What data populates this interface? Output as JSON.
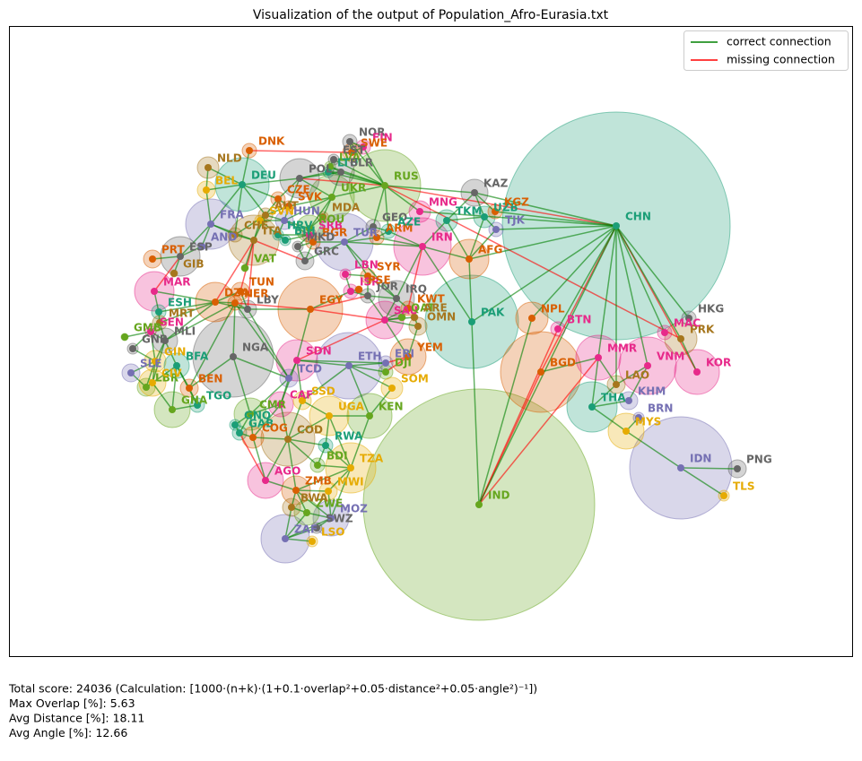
{
  "title": "Visualization of the output of Population_Afro-Eurasia.txt",
  "legend": [
    {
      "label": "correct connection",
      "color": "#008000"
    },
    {
      "label": "missing connection",
      "color": "#ff0000"
    }
  ],
  "nodes": [
    {
      "label": "CHN",
      "color": "#1b9e77"
    },
    {
      "label": "IND",
      "color": "#66a61e"
    },
    {
      "label": "PAK",
      "color": "#1b9e77"
    },
    {
      "label": "IDN",
      "color": "#7570b3"
    },
    {
      "label": "BGD",
      "color": "#d95f02"
    },
    {
      "label": "NGA",
      "color": "#666666"
    },
    {
      "label": "RUS",
      "color": "#66a61e"
    },
    {
      "label": "ETH",
      "color": "#7570b3"
    },
    {
      "label": "EGY",
      "color": "#d95f02"
    },
    {
      "label": "VNM",
      "color": "#e7298a"
    },
    {
      "label": "IRN",
      "color": "#e7298a"
    },
    {
      "label": "TUR",
      "color": "#7570b3"
    },
    {
      "label": "DEU",
      "color": "#1b9e77"
    },
    {
      "label": "COD",
      "color": "#a6761d"
    },
    {
      "label": "THA",
      "color": "#1b9e77"
    },
    {
      "label": "FRA",
      "color": "#7570b3"
    },
    {
      "label": "ITA",
      "color": "#a6761d"
    },
    {
      "label": "TZA",
      "color": "#e6ab02"
    },
    {
      "label": "ZAF",
      "color": "#7570b3"
    },
    {
      "label": "MMR",
      "color": "#e7298a"
    },
    {
      "label": "KEN",
      "color": "#66a61e"
    },
    {
      "label": "KOR",
      "color": "#e7298a"
    },
    {
      "label": "UKR",
      "color": "#66a61e"
    },
    {
      "label": "SDN",
      "color": "#e7298a"
    },
    {
      "label": "DZA",
      "color": "#d95f02"
    },
    {
      "label": "UGA",
      "color": "#e6ab02"
    },
    {
      "label": "IRQ",
      "color": "#666666"
    },
    {
      "label": "AFG",
      "color": "#d95f02"
    },
    {
      "label": "SAU",
      "color": "#e7298a"
    },
    {
      "label": "YEM",
      "color": "#d95f02"
    },
    {
      "label": "MAR",
      "color": "#e7298a"
    },
    {
      "label": "MOZ",
      "color": "#7570b3"
    },
    {
      "label": "GHA",
      "color": "#66a61e"
    },
    {
      "label": "PRK",
      "color": "#a6761d"
    },
    {
      "label": "NPL",
      "color": "#d95f02"
    },
    {
      "label": "MYS",
      "color": "#e6ab02"
    },
    {
      "label": "AGO",
      "color": "#e7298a"
    },
    {
      "label": "CMR",
      "color": "#66a61e"
    },
    {
      "label": "POL",
      "color": "#666666"
    },
    {
      "label": "ESP",
      "color": "#666666"
    },
    {
      "label": "KAZ",
      "color": "#666666"
    },
    {
      "label": "UZB",
      "color": "#1b9e77"
    },
    {
      "label": "TKM",
      "color": "#1b9e77"
    },
    {
      "label": "KGZ",
      "color": "#d95f02"
    },
    {
      "label": "TJK",
      "color": "#7570b3"
    },
    {
      "label": "MNG",
      "color": "#e7298a"
    },
    {
      "label": "NLD",
      "color": "#a6761d"
    },
    {
      "label": "BEL",
      "color": "#e6ab02"
    },
    {
      "label": "DNK",
      "color": "#d95f02"
    },
    {
      "label": "NOR",
      "color": "#666666"
    },
    {
      "label": "FIN",
      "color": "#e7298a"
    },
    {
      "label": "SWE",
      "color": "#d95f02"
    },
    {
      "label": "EST",
      "color": "#666666"
    },
    {
      "label": "LVA",
      "color": "#66a61e"
    },
    {
      "label": "LTU",
      "color": "#1b9e77"
    },
    {
      "label": "BLR",
      "color": "#666666"
    },
    {
      "label": "CHE",
      "color": "#a6761d"
    },
    {
      "label": "AUT",
      "color": "#a6761d"
    },
    {
      "label": "CZE",
      "color": "#d95f02"
    },
    {
      "label": "SVK",
      "color": "#d95f02"
    },
    {
      "label": "HUN",
      "color": "#7570b3"
    },
    {
      "label": "SVN",
      "color": "#e6ab02"
    },
    {
      "label": "HRV",
      "color": "#1b9e77"
    },
    {
      "label": "SRB",
      "color": "#e7298a"
    },
    {
      "label": "ROU",
      "color": "#66a61e"
    },
    {
      "label": "MDA",
      "color": "#a6761d"
    },
    {
      "label": "BGR",
      "color": "#d95f02"
    },
    {
      "label": "GRC",
      "color": "#666666"
    },
    {
      "label": "MKD",
      "color": "#666666"
    },
    {
      "label": "BIH",
      "color": "#1b9e77"
    },
    {
      "label": "GEO",
      "color": "#666666"
    },
    {
      "label": "ARM",
      "color": "#d95f02"
    },
    {
      "label": "AZE",
      "color": "#1b9e77"
    },
    {
      "label": "SYR",
      "color": "#d95f02"
    },
    {
      "label": "LBN",
      "color": "#e7298a"
    },
    {
      "label": "ISR",
      "color": "#e7298a"
    },
    {
      "label": "JOR",
      "color": "#666666"
    },
    {
      "label": "KWT",
      "color": "#d95f02"
    },
    {
      "label": "QAT",
      "color": "#66a61e"
    },
    {
      "label": "ARE",
      "color": "#a6761d"
    },
    {
      "label": "OMN",
      "color": "#a6761d"
    },
    {
      "label": "PSE",
      "color": "#d95f02"
    },
    {
      "label": "LBY",
      "color": "#666666"
    },
    {
      "label": "TUN",
      "color": "#d95f02"
    },
    {
      "label": "NER",
      "color": "#d95f02"
    },
    {
      "label": "PRT",
      "color": "#d95f02"
    },
    {
      "label": "GIB",
      "color": "#a6761d"
    },
    {
      "label": "AND",
      "color": "#7570b3"
    },
    {
      "label": "VAT",
      "color": "#66a61e"
    },
    {
      "label": "ESH",
      "color": "#1b9e77"
    },
    {
      "label": "MRT",
      "color": "#a6761d"
    },
    {
      "label": "MLI",
      "color": "#666666"
    },
    {
      "label": "SEN",
      "color": "#e7298a"
    },
    {
      "label": "GMB",
      "color": "#66a61e"
    },
    {
      "label": "GNB",
      "color": "#666666"
    },
    {
      "label": "GIN",
      "color": "#e6ab02"
    },
    {
      "label": "SLE",
      "color": "#7570b3"
    },
    {
      "label": "LBR",
      "color": "#66a61e"
    },
    {
      "label": "CIV",
      "color": "#e6ab02"
    },
    {
      "label": "BFA",
      "color": "#1b9e77"
    },
    {
      "label": "BEN",
      "color": "#d95f02"
    },
    {
      "label": "TGO",
      "color": "#1b9e77"
    },
    {
      "label": "GNQ",
      "color": "#1b9e77"
    },
    {
      "label": "GAB",
      "color": "#1b9e77"
    },
    {
      "label": "COG",
      "color": "#d95f02"
    },
    {
      "label": "CAF",
      "color": "#e7298a"
    },
    {
      "label": "TCD",
      "color": "#7570b3"
    },
    {
      "label": "SSD",
      "color": "#e6ab02"
    },
    {
      "label": "ERI",
      "color": "#7570b3"
    },
    {
      "label": "DJI",
      "color": "#66a61e"
    },
    {
      "label": "SOM",
      "color": "#e6ab02"
    },
    {
      "label": "RWA",
      "color": "#1b9e77"
    },
    {
      "label": "BDI",
      "color": "#66a61e"
    },
    {
      "label": "ZMB",
      "color": "#d95f02"
    },
    {
      "label": "MWI",
      "color": "#e6ab02"
    },
    {
      "label": "ZWE",
      "color": "#66a61e"
    },
    {
      "label": "BWA",
      "color": "#a6761d"
    },
    {
      "label": "SWZ",
      "color": "#666666"
    },
    {
      "label": "LSO",
      "color": "#e6ab02"
    },
    {
      "label": "LAO",
      "color": "#a6761d"
    },
    {
      "label": "KHM",
      "color": "#7570b3"
    },
    {
      "label": "BRN",
      "color": "#7570b3"
    },
    {
      "label": "TLS",
      "color": "#e6ab02"
    },
    {
      "label": "PNG",
      "color": "#666666"
    },
    {
      "label": "HKG",
      "color": "#666666"
    },
    {
      "label": "MAC",
      "color": "#e7298a"
    },
    {
      "label": "BTN",
      "color": "#e7298a"
    }
  ],
  "correct_edges": [
    [
      "CHN",
      "KAZ"
    ],
    [
      "CHN",
      "MNG"
    ],
    [
      "CHN",
      "KGZ"
    ],
    [
      "CHN",
      "TJK"
    ],
    [
      "CHN",
      "AFG"
    ],
    [
      "CHN",
      "PAK"
    ],
    [
      "CHN",
      "IND"
    ],
    [
      "CHN",
      "NPL"
    ],
    [
      "CHN",
      "BTN"
    ],
    [
      "CHN",
      "MMR"
    ],
    [
      "CHN",
      "LAO"
    ],
    [
      "CHN",
      "VNM"
    ],
    [
      "CHN",
      "PRK"
    ],
    [
      "CHN",
      "HKG"
    ],
    [
      "CHN",
      "MAC"
    ],
    [
      "RUS",
      "NOR"
    ],
    [
      "RUS",
      "FIN"
    ],
    [
      "RUS",
      "EST"
    ],
    [
      "RUS",
      "LVA"
    ],
    [
      "RUS",
      "LTU"
    ],
    [
      "RUS",
      "BLR"
    ],
    [
      "RUS",
      "UKR"
    ],
    [
      "RUS",
      "GEO"
    ],
    [
      "RUS",
      "AZE"
    ],
    [
      "RUS",
      "KAZ"
    ],
    [
      "RUS",
      "MNG"
    ],
    [
      "KAZ",
      "UZB"
    ],
    [
      "KAZ",
      "KGZ"
    ],
    [
      "KAZ",
      "TKM"
    ],
    [
      "UZB",
      "TKM"
    ],
    [
      "UZB",
      "AFG"
    ],
    [
      "UZB",
      "TJK"
    ],
    [
      "TJK",
      "AFG"
    ],
    [
      "TKM",
      "AFG"
    ],
    [
      "TKM",
      "IRN"
    ],
    [
      "AFG",
      "IRN"
    ],
    [
      "AFG",
      "PAK"
    ],
    [
      "PAK",
      "IRN"
    ],
    [
      "PAK",
      "IND"
    ],
    [
      "IND",
      "NPL"
    ],
    [
      "BGD",
      "MMR"
    ],
    [
      "MMR",
      "THA"
    ],
    [
      "MMR",
      "LAO"
    ],
    [
      "THA",
      "LAO"
    ],
    [
      "THA",
      "KHM"
    ],
    [
      "THA",
      "MYS"
    ],
    [
      "LAO",
      "VNM"
    ],
    [
      "KHM",
      "VNM"
    ],
    [
      "MYS",
      "IDN"
    ],
    [
      "MYS",
      "BRN"
    ],
    [
      "IDN",
      "PNG"
    ],
    [
      "IDN",
      "TLS"
    ],
    [
      "PRK",
      "KOR"
    ],
    [
      "IRN",
      "TUR"
    ],
    [
      "IRN",
      "IRQ"
    ],
    [
      "IRN",
      "ARM"
    ],
    [
      "IRN",
      "AZE"
    ],
    [
      "TUR",
      "GEO"
    ],
    [
      "TUR",
      "ARM"
    ],
    [
      "TUR",
      "SYR"
    ],
    [
      "TUR",
      "IRQ"
    ],
    [
      "TUR",
      "GRC"
    ],
    [
      "TUR",
      "BGR"
    ],
    [
      "GEO",
      "ARM"
    ],
    [
      "GEO",
      "AZE"
    ],
    [
      "ARM",
      "AZE"
    ],
    [
      "SYR",
      "IRQ"
    ],
    [
      "SYR",
      "LBN"
    ],
    [
      "SYR",
      "JOR"
    ],
    [
      "LBN",
      "ISR"
    ],
    [
      "ISR",
      "JOR"
    ],
    [
      "ISR",
      "EGY"
    ],
    [
      "ISR",
      "PSE"
    ],
    [
      "JOR",
      "SAU"
    ],
    [
      "JOR",
      "IRQ"
    ],
    [
      "IRQ",
      "SAU"
    ],
    [
      "IRQ",
      "KWT"
    ],
    [
      "KWT",
      "SAU"
    ],
    [
      "SAU",
      "QAT"
    ],
    [
      "SAU",
      "ARE"
    ],
    [
      "SAU",
      "OMN"
    ],
    [
      "SAU",
      "YEM"
    ],
    [
      "OMN",
      "YEM"
    ],
    [
      "ARE",
      "OMN"
    ],
    [
      "EGY",
      "LBY"
    ],
    [
      "EGY",
      "SDN"
    ],
    [
      "SDN",
      "TCD"
    ],
    [
      "SDN",
      "CAF"
    ],
    [
      "SDN",
      "SSD"
    ],
    [
      "SDN",
      "ETH"
    ],
    [
      "SDN",
      "ERI"
    ],
    [
      "ETH",
      "ERI"
    ],
    [
      "ETH",
      "DJI"
    ],
    [
      "ETH",
      "SOM"
    ],
    [
      "ETH",
      "KEN"
    ],
    [
      "ETH",
      "SSD"
    ],
    [
      "KEN",
      "SOM"
    ],
    [
      "KEN",
      "UGA"
    ],
    [
      "KEN",
      "TZA"
    ],
    [
      "UGA",
      "SSD"
    ],
    [
      "UGA",
      "COD"
    ],
    [
      "UGA",
      "RWA"
    ],
    [
      "UGA",
      "TZA"
    ],
    [
      "RWA",
      "COD"
    ],
    [
      "RWA",
      "BDI"
    ],
    [
      "RWA",
      "TZA"
    ],
    [
      "BDI",
      "TZA"
    ],
    [
      "BDI",
      "COD"
    ],
    [
      "TZA",
      "MOZ"
    ],
    [
      "TZA",
      "MWI"
    ],
    [
      "TZA",
      "ZMB"
    ],
    [
      "COD",
      "ZMB"
    ],
    [
      "COD",
      "AGO"
    ],
    [
      "COD",
      "CAF"
    ],
    [
      "COD",
      "SSD"
    ],
    [
      "COD",
      "COG"
    ],
    [
      "CAF",
      "CMR"
    ],
    [
      "CAF",
      "TCD"
    ],
    [
      "CAF",
      "COG"
    ],
    [
      "TCD",
      "NGA"
    ],
    [
      "TCD",
      "NER"
    ],
    [
      "TCD",
      "CMR"
    ],
    [
      "TCD",
      "LBY"
    ],
    [
      "CMR",
      "NGA"
    ],
    [
      "CMR",
      "GNQ"
    ],
    [
      "CMR",
      "GAB"
    ],
    [
      "CMR",
      "COG"
    ],
    [
      "GAB",
      "COG"
    ],
    [
      "GNQ",
      "GAB"
    ],
    [
      "COG",
      "AGO"
    ],
    [
      "AGO",
      "ZMB"
    ],
    [
      "ZMB",
      "MWI"
    ],
    [
      "ZMB",
      "MOZ"
    ],
    [
      "ZMB",
      "ZWE"
    ],
    [
      "ZMB",
      "BWA"
    ],
    [
      "MOZ",
      "MWI"
    ],
    [
      "MOZ",
      "ZWE"
    ],
    [
      "MOZ",
      "ZAF"
    ],
    [
      "MOZ",
      "SWZ"
    ],
    [
      "ZWE",
      "ZAF"
    ],
    [
      "ZWE",
      "BWA"
    ],
    [
      "BWA",
      "ZAF"
    ],
    [
      "ZAF",
      "LSO"
    ],
    [
      "ZAF",
      "SWZ"
    ],
    [
      "NGA",
      "NER"
    ],
    [
      "NGA",
      "BEN"
    ],
    [
      "BEN",
      "NER"
    ],
    [
      "BEN",
      "TGO"
    ],
    [
      "BEN",
      "BFA"
    ],
    [
      "TGO",
      "GHA"
    ],
    [
      "TGO",
      "BFA"
    ],
    [
      "GHA",
      "BFA"
    ],
    [
      "GHA",
      "CIV"
    ],
    [
      "CIV",
      "BFA"
    ],
    [
      "CIV",
      "MLI"
    ],
    [
      "CIV",
      "GIN"
    ],
    [
      "CIV",
      "LBR"
    ],
    [
      "LBR",
      "GIN"
    ],
    [
      "LBR",
      "SLE"
    ],
    [
      "SLE",
      "GIN"
    ],
    [
      "GIN",
      "GNB"
    ],
    [
      "GIN",
      "SEN"
    ],
    [
      "GIN",
      "MLI"
    ],
    [
      "GNB",
      "SEN"
    ],
    [
      "SEN",
      "GMB"
    ],
    [
      "SEN",
      "MRT"
    ],
    [
      "SEN",
      "MLI"
    ],
    [
      "MLI",
      "MRT"
    ],
    [
      "MLI",
      "NER"
    ],
    [
      "MLI",
      "DZA"
    ],
    [
      "MLI",
      "BFA"
    ],
    [
      "MRT",
      "ESH"
    ],
    [
      "MRT",
      "DZA"
    ],
    [
      "ESH",
      "MAR"
    ],
    [
      "ESH",
      "DZA"
    ],
    [
      "MAR",
      "DZA"
    ],
    [
      "DZA",
      "TUN"
    ],
    [
      "DZA",
      "LBY"
    ],
    [
      "DZA",
      "NER"
    ],
    [
      "TUN",
      "LBY"
    ],
    [
      "LBY",
      "NER"
    ],
    [
      "ESP",
      "PRT"
    ],
    [
      "ESP",
      "FRA"
    ],
    [
      "ESP",
      "AND"
    ],
    [
      "ESP",
      "GIB"
    ],
    [
      "FRA",
      "AND"
    ],
    [
      "FRA",
      "BEL"
    ],
    [
      "FRA",
      "DEU"
    ],
    [
      "FRA",
      "CHE"
    ],
    [
      "FRA",
      "ITA"
    ],
    [
      "BEL",
      "NLD"
    ],
    [
      "BEL",
      "DEU"
    ],
    [
      "NLD",
      "DEU"
    ],
    [
      "DEU",
      "DNK"
    ],
    [
      "DEU",
      "POL"
    ],
    [
      "DEU",
      "CZE"
    ],
    [
      "DEU",
      "AUT"
    ],
    [
      "DEU",
      "CHE"
    ],
    [
      "CHE",
      "ITA"
    ],
    [
      "CHE",
      "AUT"
    ],
    [
      "ITA",
      "AUT"
    ],
    [
      "ITA",
      "SVN"
    ],
    [
      "ITA",
      "VAT"
    ],
    [
      "AUT",
      "CZE"
    ],
    [
      "AUT",
      "SVK"
    ],
    [
      "AUT",
      "HUN"
    ],
    [
      "AUT",
      "SVN"
    ],
    [
      "CZE",
      "POL"
    ],
    [
      "CZE",
      "SVK"
    ],
    [
      "SVK",
      "POL"
    ],
    [
      "SVK",
      "UKR"
    ],
    [
      "SVK",
      "HUN"
    ],
    [
      "HUN",
      "SVN"
    ],
    [
      "HUN",
      "HRV"
    ],
    [
      "HUN",
      "SRB"
    ],
    [
      "HUN",
      "ROU"
    ],
    [
      "HUN",
      "UKR"
    ],
    [
      "HRV",
      "SVN"
    ],
    [
      "HRV",
      "BIH"
    ],
    [
      "HRV",
      "SRB"
    ],
    [
      "BIH",
      "SRB"
    ],
    [
      "SRB",
      "ROU"
    ],
    [
      "SRB",
      "BGR"
    ],
    [
      "SRB",
      "MKD"
    ],
    [
      "MKD",
      "BGR"
    ],
    [
      "MKD",
      "GRC"
    ],
    [
      "BGR",
      "GRC"
    ],
    [
      "BGR",
      "ROU"
    ],
    [
      "ROU",
      "MDA"
    ],
    [
      "ROU",
      "UKR"
    ],
    [
      "MDA",
      "UKR"
    ],
    [
      "UKR",
      "BLR"
    ],
    [
      "UKR",
      "POL"
    ],
    [
      "POL",
      "BLR"
    ],
    [
      "POL",
      "LTU"
    ],
    [
      "LTU",
      "LVA"
    ],
    [
      "LTU",
      "BLR"
    ],
    [
      "LVA",
      "EST"
    ],
    [
      "LVA",
      "BLR"
    ],
    [
      "NOR",
      "SWE"
    ],
    [
      "NOR",
      "FIN"
    ],
    [
      "SWE",
      "FIN"
    ]
  ],
  "missing_edges": [
    [
      "CHN",
      "RUS"
    ],
    [
      "CHN",
      "KOR"
    ],
    [
      "CHN",
      "BGD"
    ],
    [
      "IND",
      "BGD"
    ],
    [
      "IND",
      "MMR"
    ],
    [
      "IND",
      "BTN"
    ],
    [
      "RUS",
      "PRK"
    ],
    [
      "RUS",
      "POL"
    ],
    [
      "DNK",
      "SWE"
    ],
    [
      "EGY",
      "SAU"
    ],
    [
      "ITA",
      "TUN"
    ],
    [
      "ITA",
      "LBY"
    ],
    [
      "YEM",
      "DJI"
    ],
    [
      "YEM",
      "ERI"
    ],
    [
      "SAU",
      "SDN"
    ],
    [
      "MAR",
      "ESP"
    ],
    [
      "GRC",
      "ITA"
    ],
    [
      "NER",
      "EGY"
    ],
    [
      "DZA",
      "ITA"
    ],
    [
      "AGO",
      "GAB"
    ],
    [
      "EGY",
      "JOR"
    ],
    [
      "IRN",
      "KWT"
    ]
  ],
  "footer": [
    "Total score: 24036  (Calculation: [1000·(n+k)·(1+0.1·overlap²+0.05·distance²+0.05·angle²)⁻¹])",
    "Max Overlap [%]: 5.63",
    "Avg Distance [%]: 18.11",
    "Avg Angle [%]: 12.66"
  ]
}
